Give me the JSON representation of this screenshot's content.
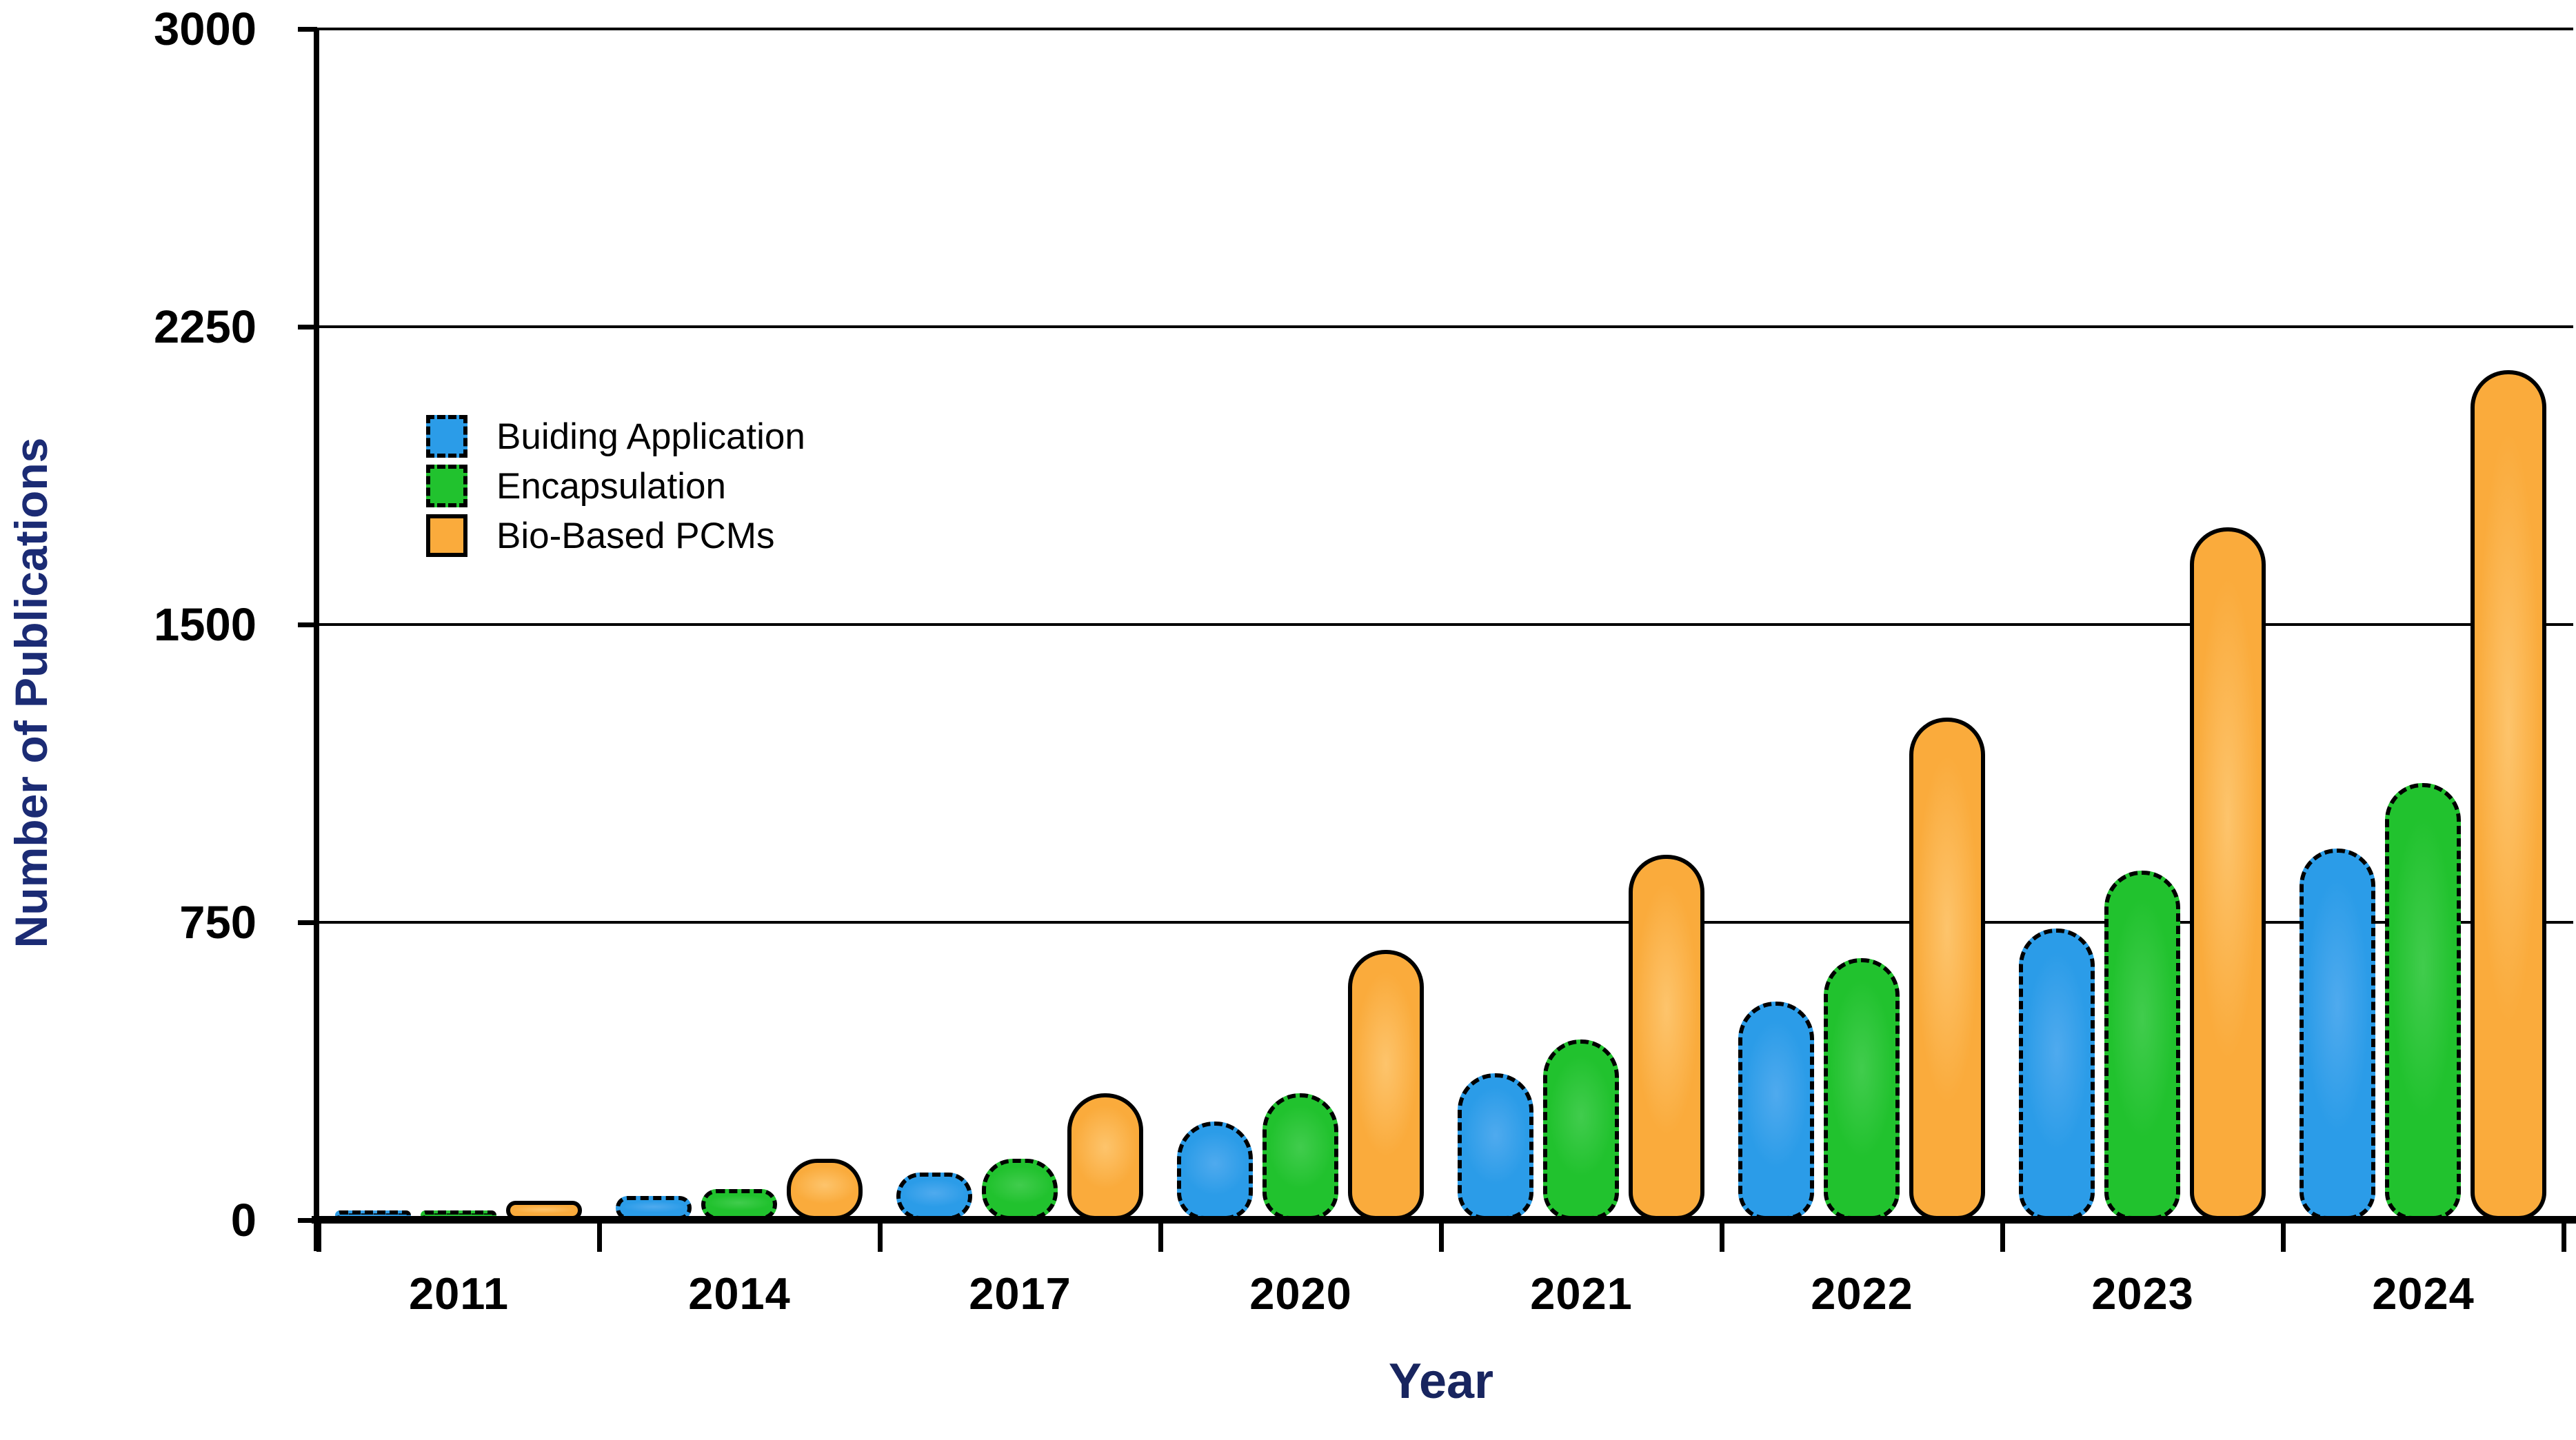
{
  "chart_data": {
    "type": "bar",
    "title": "",
    "xlabel": "Year",
    "ylabel": "Number of Publications",
    "categories": [
      "2011",
      "2014",
      "2017",
      "2020",
      "2021",
      "2022",
      "2023",
      "2024"
    ],
    "series": [
      {
        "name": "Buiding Application",
        "color": "#2b9ce8",
        "color_light": "#4faaee",
        "border_style": "dashed",
        "values": [
          8,
          60,
          120,
          248,
          370,
          550,
          735,
          935
        ]
      },
      {
        "name": "Encapsulation",
        "color": "#21c22e",
        "color_light": "#41cc4d",
        "border_style": "dashed",
        "values": [
          25,
          78,
          155,
          320,
          455,
          660,
          880,
          1100
        ]
      },
      {
        "name": "Bio-Based PCMs",
        "color": "#faab3c",
        "color_light": "#fdc46c",
        "border_style": "solid",
        "values": [
          48,
          155,
          320,
          680,
          920,
          1265,
          1745,
          2140
        ]
      }
    ],
    "y_ticks": [
      0,
      750,
      1500,
      2250,
      3000
    ],
    "ylim": [
      0,
      3000
    ],
    "grid": true,
    "legend_position": "upper-left-inside",
    "axis_title_color": "#1b2b74",
    "tick_label_color": "#000000"
  }
}
